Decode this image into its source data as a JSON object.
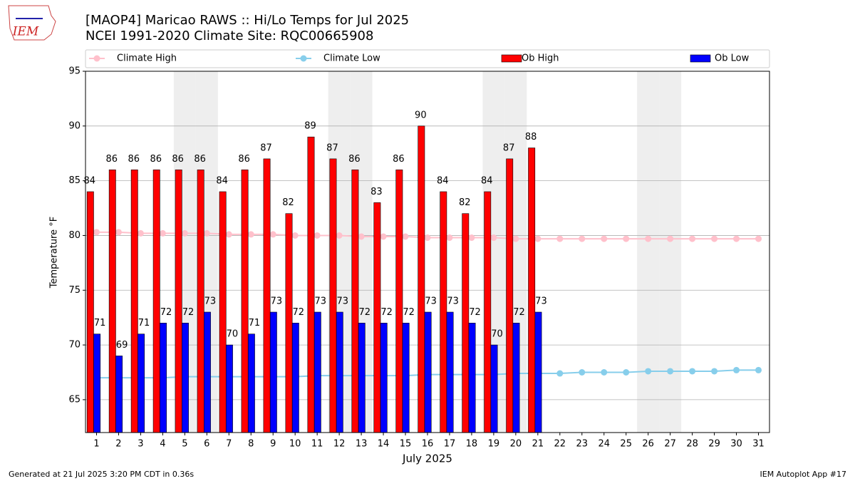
{
  "logo": "IEM",
  "footer_left": "Generated at 21 Jul 2025 3:20 PM CDT in 0.36s",
  "footer_right": "IEM Autoplot App #17",
  "chart_data": {
    "type": "bar",
    "title": "[MAOP4] Maricao RAWS :: Hi/Lo Temps for Jul 2025",
    "subtitle": "NCEI 1991-2020 Climate Site: RQC00665908",
    "y_label": "Temperature °F",
    "x_label": "July 2025",
    "x": [
      1,
      2,
      3,
      4,
      5,
      6,
      7,
      8,
      9,
      10,
      11,
      12,
      13,
      14,
      15,
      16,
      17,
      18,
      19,
      20,
      21,
      22,
      23,
      24,
      25,
      26,
      27,
      28,
      29,
      30,
      31
    ],
    "xlim": [
      0.5,
      31.5
    ],
    "xticks": [
      1,
      2,
      3,
      4,
      5,
      6,
      7,
      8,
      9,
      10,
      11,
      12,
      13,
      14,
      15,
      16,
      17,
      18,
      19,
      20,
      21,
      22,
      23,
      24,
      25,
      26,
      27,
      28,
      29,
      30,
      31
    ],
    "ylim": [
      62,
      95
    ],
    "yticks": [
      65,
      70,
      75,
      80,
      85,
      90,
      95
    ],
    "grid": true,
    "weekend_days": [
      5,
      6,
      12,
      13,
      19,
      20,
      26,
      27
    ],
    "series": [
      {
        "name": "Climate High",
        "color": "#ffc0cb",
        "kind": "line",
        "values": [
          80.3,
          80.3,
          80.2,
          80.2,
          80.2,
          80.2,
          80.1,
          80.1,
          80.1,
          80.0,
          80.0,
          80.0,
          79.9,
          79.9,
          79.9,
          79.8,
          79.8,
          79.8,
          79.8,
          79.7,
          79.7,
          79.7,
          79.7,
          79.7,
          79.7,
          79.7,
          79.7,
          79.7,
          79.7,
          79.7,
          79.7
        ]
      },
      {
        "name": "Climate Low",
        "color": "#87ceeb",
        "kind": "line",
        "values": [
          67.0,
          67.0,
          67.0,
          67.0,
          67.1,
          67.1,
          67.1,
          67.1,
          67.1,
          67.1,
          67.2,
          67.2,
          67.2,
          67.2,
          67.2,
          67.3,
          67.3,
          67.3,
          67.3,
          67.4,
          67.4,
          67.4,
          67.5,
          67.5,
          67.5,
          67.6,
          67.6,
          67.6,
          67.6,
          67.7,
          67.7
        ]
      },
      {
        "name": "Ob High",
        "color": "#ff0000",
        "kind": "bar",
        "values": [
          84,
          86,
          86,
          86,
          86,
          86,
          84,
          86,
          87,
          82,
          89,
          87,
          86,
          83,
          86,
          90,
          84,
          82,
          84,
          87,
          88,
          null,
          null,
          null,
          null,
          null,
          null,
          null,
          null,
          null,
          null
        ]
      },
      {
        "name": "Ob Low",
        "color": "#0000ff",
        "kind": "bar",
        "values": [
          71,
          69,
          71,
          72,
          72,
          73,
          70,
          71,
          73,
          72,
          73,
          73,
          72,
          72,
          72,
          73,
          73,
          72,
          70,
          72,
          73,
          null,
          null,
          null,
          null,
          null,
          null,
          null,
          null,
          null,
          null
        ]
      }
    ]
  }
}
